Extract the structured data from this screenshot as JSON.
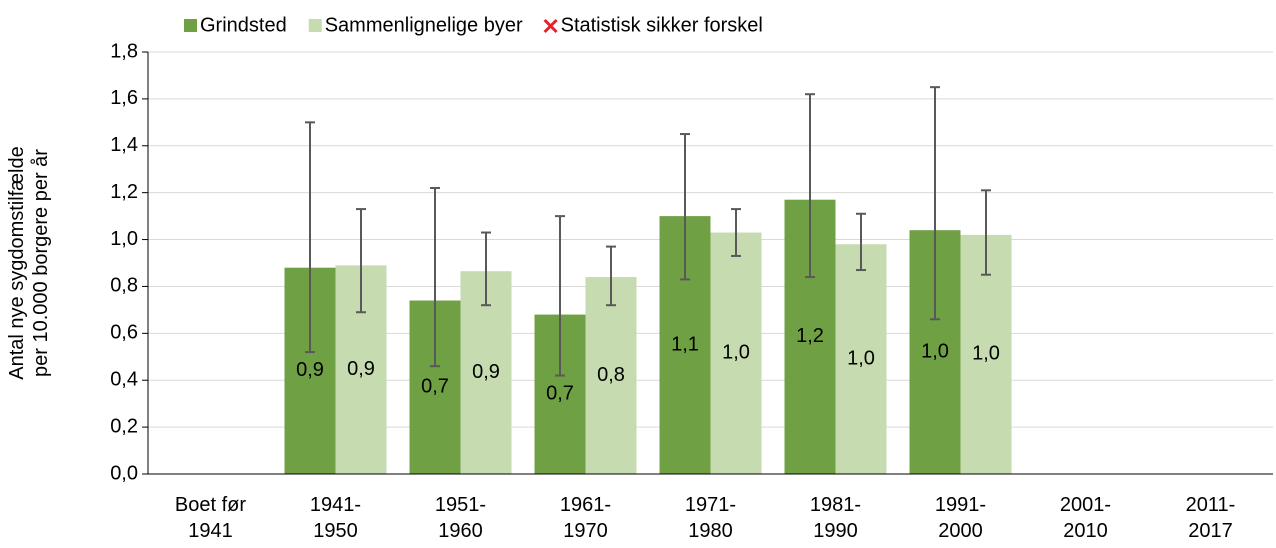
{
  "chart_data": {
    "type": "bar",
    "ylabel": [
      "Antal nye sygdomstilfælde",
      "per 10.000 borgere per år"
    ],
    "categories": [
      [
        "Boet før",
        "1941"
      ],
      [
        "1941-",
        "1950"
      ],
      [
        "1951-",
        "1960"
      ],
      [
        "1961-",
        "1970"
      ],
      [
        "1971-",
        "1980"
      ],
      [
        "1981-",
        "1990"
      ],
      [
        "1991-",
        "2000"
      ],
      [
        "2001-",
        "2010"
      ],
      [
        "2011-",
        "2017"
      ]
    ],
    "series": [
      {
        "name": "Grindsted",
        "color": "#70a044",
        "values": [
          null,
          0.88,
          0.74,
          0.68,
          1.1,
          1.17,
          1.04,
          null,
          null
        ],
        "value_labels": [
          null,
          "0,9",
          "0,7",
          "0,7",
          "1,1",
          "1,2",
          "1,0",
          null,
          null
        ],
        "ci_low": [
          null,
          0.52,
          0.46,
          0.42,
          0.83,
          0.84,
          0.66,
          null,
          null
        ],
        "ci_high": [
          null,
          1.5,
          1.22,
          1.1,
          1.45,
          1.62,
          1.65,
          null,
          null
        ]
      },
      {
        "name": "Sammenlignelige byer",
        "color": "#c6dbb0",
        "values": [
          null,
          0.89,
          0.865,
          0.84,
          1.03,
          0.98,
          1.02,
          null,
          null
        ],
        "value_labels": [
          null,
          "0,9",
          "0,9",
          "0,8",
          "1,0",
          "1,0",
          "1,0",
          null,
          null
        ],
        "ci_low": [
          null,
          0.69,
          0.72,
          0.72,
          0.93,
          0.87,
          0.85,
          null,
          null
        ],
        "ci_high": [
          null,
          1.13,
          1.03,
          0.97,
          1.13,
          1.11,
          1.21,
          null,
          null
        ]
      }
    ],
    "legend_extra": {
      "name": "Statistisk sikker forskel",
      "color": "#e8202a"
    },
    "error_color": "#595959",
    "ylim": [
      0,
      1.8
    ],
    "yticks": [
      {
        "value": 0,
        "label": "0,0"
      },
      {
        "value": 0.2,
        "label": "0,2"
      },
      {
        "value": 0.4,
        "label": "0,4"
      },
      {
        "value": 0.6,
        "label": "0,6"
      },
      {
        "value": 0.8,
        "label": "0,8"
      },
      {
        "value": 1.0,
        "label": "1,0"
      },
      {
        "value": 1.2,
        "label": "1,2"
      },
      {
        "value": 1.4,
        "label": "1,4"
      },
      {
        "value": 1.6,
        "label": "1,6"
      },
      {
        "value": 1.8,
        "label": "1,8"
      }
    ],
    "grid": true
  }
}
